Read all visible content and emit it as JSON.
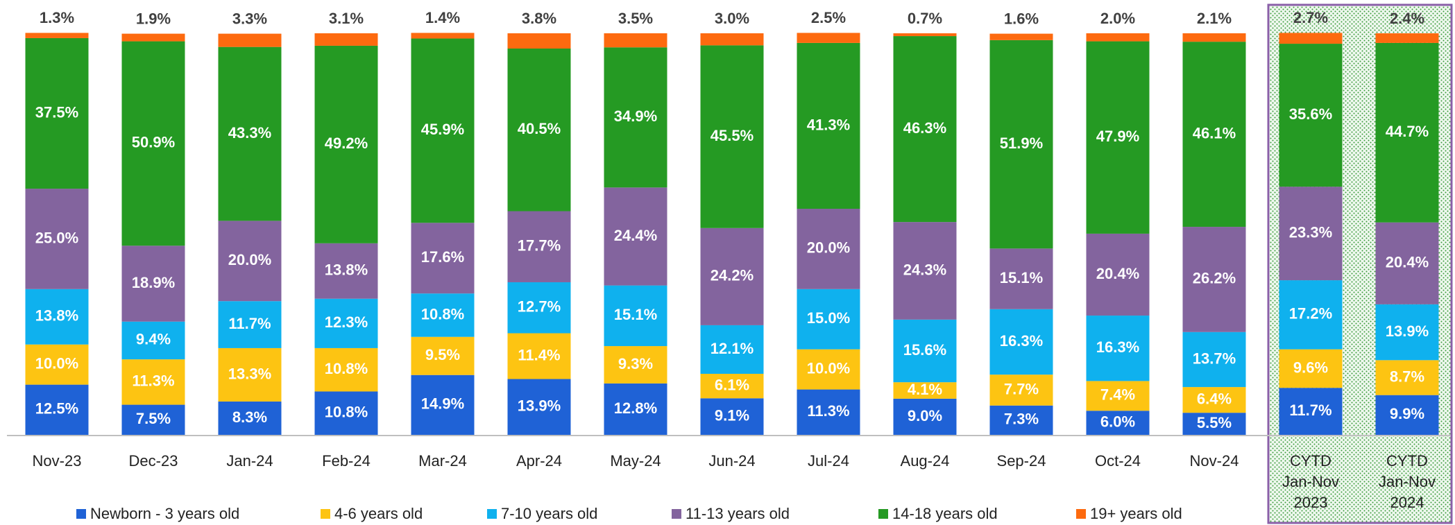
{
  "chart_data": {
    "type": "stacked_bar",
    "categories": [
      "Nov-23",
      "Dec-23",
      "Jan-24",
      "Feb-24",
      "Mar-24",
      "Apr-24",
      "May-24",
      "Jun-24",
      "Jul-24",
      "Aug-24",
      "Sep-24",
      "Oct-24",
      "Nov-24",
      "CYTD Jan-Nov 2023",
      "CYTD Jan-Nov 2024"
    ],
    "series": [
      {
        "name": "Newborn - 3 years old",
        "color": "#1f62d6",
        "values": [
          12.5,
          7.5,
          8.3,
          10.8,
          14.9,
          13.9,
          12.8,
          9.1,
          11.3,
          9.0,
          7.3,
          6.0,
          5.5,
          11.7,
          9.9
        ],
        "value_labels": [
          "12.5%",
          "7.5%",
          "8.3%",
          "10.8%",
          "14.9%",
          "13.9%",
          "12.8%",
          "9.1%",
          "11.3%",
          "9.0%",
          "7.3%",
          "6.0%",
          "5.5%",
          "11.7%",
          "9.9%"
        ]
      },
      {
        "name": "4-6 years old",
        "color": "#fdc412",
        "values": [
          10.0,
          11.3,
          13.3,
          10.8,
          9.5,
          11.4,
          9.3,
          6.1,
          10.0,
          4.1,
          7.7,
          7.4,
          6.4,
          9.6,
          8.7
        ],
        "value_labels": [
          "10.0%",
          "11.3%",
          "13.3%",
          "10.8%",
          "9.5%",
          "11.4%",
          "9.3%",
          "6.1%",
          "10.0%",
          "4.1%",
          "7.7%",
          "7.4%",
          "6.4%",
          "9.6%",
          "8.7%"
        ]
      },
      {
        "name": "7-10 years old",
        "color": "#0fb1ee",
        "values": [
          13.8,
          9.4,
          11.7,
          12.3,
          10.8,
          12.7,
          15.1,
          12.1,
          15.0,
          15.6,
          16.3,
          16.3,
          13.7,
          17.2,
          13.9
        ],
        "value_labels": [
          "13.8%",
          "9.4%",
          "11.7%",
          "12.3%",
          "10.8%",
          "12.7%",
          "15.1%",
          "12.1%",
          "15.0%",
          "15.6%",
          "16.3%",
          "16.3%",
          "13.7%",
          "17.2%",
          "13.9%"
        ]
      },
      {
        "name": "11-13 years old",
        "color": "#83649e",
        "values": [
          25.0,
          18.9,
          20.0,
          13.8,
          17.6,
          17.7,
          24.4,
          24.2,
          20.0,
          24.3,
          15.1,
          20.4,
          26.2,
          23.3,
          20.4
        ],
        "value_labels": [
          "25.0%",
          "18.9%",
          "20.0%",
          "13.8%",
          "17.6%",
          "17.7%",
          "24.4%",
          "24.2%",
          "20.0%",
          "24.3%",
          "15.1%",
          "20.4%",
          "26.2%",
          "23.3%",
          "20.4%"
        ]
      },
      {
        "name": "14-18  years old",
        "color": "#259a23",
        "values": [
          37.5,
          50.9,
          43.3,
          49.2,
          45.9,
          40.5,
          34.9,
          45.5,
          41.3,
          46.3,
          51.9,
          47.9,
          46.1,
          35.6,
          44.7
        ],
        "value_labels": [
          "37.5%",
          "50.9%",
          "43.3%",
          "49.2%",
          "45.9%",
          "40.5%",
          "34.9%",
          "45.5%",
          "41.3%",
          "46.3%",
          "51.9%",
          "47.9%",
          "46.1%",
          "35.6%",
          "44.7%"
        ]
      },
      {
        "name": "19+ years old",
        "color": "#fd6a0f",
        "values": [
          1.3,
          1.9,
          3.3,
          3.1,
          1.4,
          3.8,
          3.5,
          3.0,
          2.5,
          0.7,
          1.6,
          2.0,
          2.1,
          2.7,
          2.4
        ],
        "value_labels": [
          "1.3%",
          "1.9%",
          "3.3%",
          "3.1%",
          "1.4%",
          "3.8%",
          "3.5%",
          "3.0%",
          "2.5%",
          "0.7%",
          "1.6%",
          "2.0%",
          "2.1%",
          "2.7%",
          "2.4%"
        ]
      }
    ]
  }
}
